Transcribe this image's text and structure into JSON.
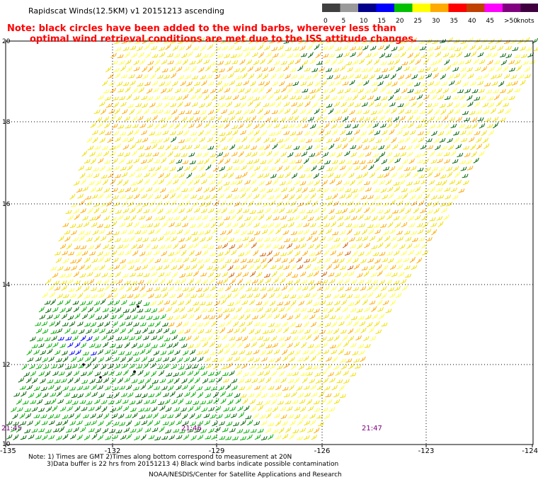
{
  "title": "Rapidscat Winds(12.5KM) v1 20151213 ascending",
  "note": {
    "line1": "Note: black circles have been added to the wind barbs, wherever less than",
    "line2": "optimal wind retrieval conditions are met due to the ISS attitude changes."
  },
  "legend": {
    "unit": "knots",
    "bins": [
      {
        "label": "0",
        "color": "#404040"
      },
      {
        "label": "5",
        "color": "#9a9a9a"
      },
      {
        "label": "10",
        "color": "#00008b"
      },
      {
        "label": "15",
        "color": "#0000ff"
      },
      {
        "label": "20",
        "color": "#00c000"
      },
      {
        "label": "25",
        "color": "#ffff00"
      },
      {
        "label": "30",
        "color": "#ffaa00"
      },
      {
        "label": "35",
        "color": "#ff0000"
      },
      {
        "label": "40",
        "color": "#c04000"
      },
      {
        "label": "45",
        "color": "#ff00ff"
      },
      {
        "label": ">50",
        "color": "#800080"
      }
    ],
    "last_color": "#400040"
  },
  "map": {
    "lon_range": [
      -135,
      -124
    ],
    "lat_range": [
      10,
      20
    ],
    "lon_ticks": [
      "-135",
      "-132",
      "-129",
      "-126",
      "-123",
      "-124"
    ],
    "lat_ticks": [
      "20",
      "18",
      "16",
      "14",
      "12",
      "10"
    ],
    "time_labels": [
      "21:45",
      "21:46",
      "21:47"
    ],
    "time_color": "#800080",
    "swath_colors": {
      "yellow": "#f0e000",
      "light_yellow": "#ffff40",
      "orange": "#ffaa00",
      "dark_orange": "#d06000",
      "green": "#00b000",
      "dark_green": "#006400",
      "blue": "#0000ff"
    }
  },
  "footer": {
    "line1": "Note: 1) Times are GMT 2)Times along bottom correspond to measurement at 20N",
    "line2": "3)Data buffer is 22 hrs from 20151213 4) Black wind barbs indicate possible contamination",
    "line3": "NOAA/NESDIS/Center for Satellite Applications and Research"
  }
}
